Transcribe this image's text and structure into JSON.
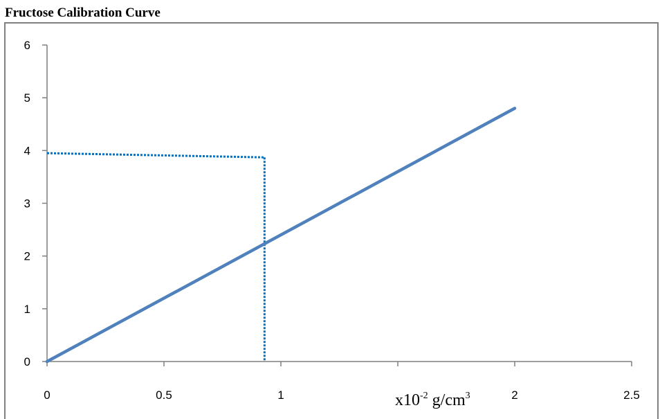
{
  "title": "Fructose Calibration Curve",
  "axis_unit": {
    "prefix": "x10",
    "exponent": "-2",
    "unit": " g/cm",
    "unit_exponent": "3"
  },
  "chart_data": {
    "type": "line",
    "title": "Fructose Calibration Curve",
    "xlabel": "x10-2 g/cm3",
    "ylabel": "",
    "xlim": [
      0,
      2.5
    ],
    "ylim": [
      0,
      6
    ],
    "x_ticks": [
      0,
      0.5,
      1,
      1.5,
      2,
      2.5
    ],
    "x_tick_labels": [
      "0",
      "0.5",
      "1",
      "",
      "2",
      "2.5"
    ],
    "y_ticks": [
      0,
      1,
      2,
      3,
      4,
      5,
      6
    ],
    "y_tick_labels": [
      "0",
      "1",
      "2",
      "3",
      "4",
      "5",
      "6"
    ],
    "grid": false,
    "legend": "none",
    "series": [
      {
        "x": [
          0,
          2
        ],
        "y": [
          0,
          4.8
        ],
        "color": "#4f81bd",
        "style": "solid"
      }
    ],
    "reference_lines": [
      {
        "x": [
          0,
          0.93
        ],
        "y": [
          3.95,
          3.87
        ],
        "color": "#0070c0",
        "style": "dotted"
      },
      {
        "x": [
          0.93,
          0.93
        ],
        "y": [
          3.87,
          0
        ],
        "color": "#0070c0",
        "style": "dotted"
      }
    ],
    "colors": {
      "axis": "#7f7f7f",
      "line": "#4f81bd",
      "reference": "#0070c0"
    }
  }
}
